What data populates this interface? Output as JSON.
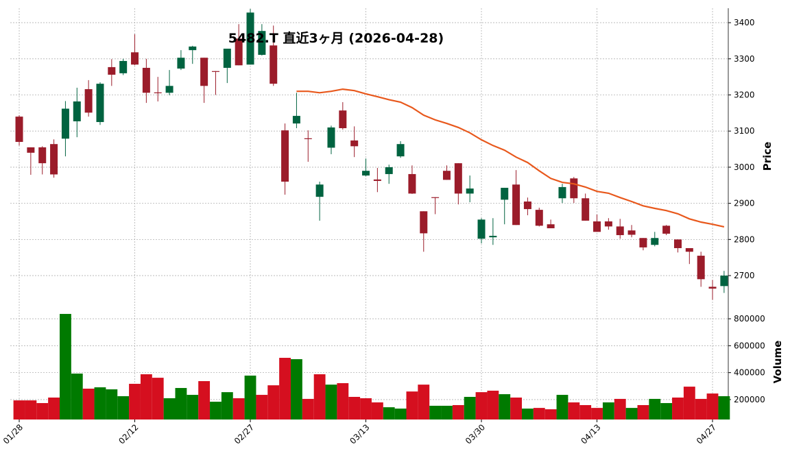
{
  "chart_data": {
    "type": "candlestick",
    "title": "5482.T 直近3ヶ月 (2026-04-28)",
    "ylabel": "Price",
    "categories": [
      "01/28",
      null,
      null,
      null,
      null,
      null,
      null,
      null,
      null,
      null,
      "02/12",
      null,
      null,
      null,
      null,
      null,
      null,
      null,
      null,
      null,
      "02/27",
      null,
      null,
      null,
      null,
      null,
      null,
      null,
      null,
      null,
      "03/13",
      null,
      null,
      null,
      null,
      null,
      null,
      null,
      null,
      null,
      "03/30",
      null,
      null,
      null,
      null,
      null,
      null,
      null,
      null,
      null,
      "04/13",
      null,
      null,
      null,
      null,
      null,
      null,
      null,
      null,
      null,
      "04/27",
      null
    ],
    "open": [
      3140,
      3055,
      3055,
      3064,
      3079,
      3127,
      3216,
      3125,
      3277,
      3260,
      3318,
      3275,
      3207,
      3206,
      3273,
      3324,
      3303,
      3266,
      3275,
      3356,
      3284,
      3311,
      3337,
      3102,
      3121,
      3080,
      2918,
      3054,
      3157,
      3074,
      2977,
      2966,
      2981,
      3030,
      2981,
      2878,
      2917,
      2990,
      3011,
      2927,
      2802,
      2806,
      2910,
      2952,
      2905,
      2882,
      2842,
      2914,
      2969,
      2914,
      2850,
      2850,
      2836,
      2825,
      2804,
      2785,
      2838,
      2800,
      2776,
      2755,
      2669,
      2671
    ],
    "high": [
      3144,
      3055,
      3058,
      3077,
      3183,
      3220,
      3241,
      3235,
      3299,
      3300,
      3368,
      3300,
      3250,
      3269,
      3324,
      3336,
      3303,
      3266,
      3328,
      3396,
      3438,
      3396,
      3392,
      3121,
      3206,
      3102,
      2960,
      3115,
      3180,
      3113,
      3024,
      2998,
      3007,
      3072,
      3005,
      2878,
      2917,
      3005,
      3011,
      2977,
      2859,
      2859,
      2943,
      2992,
      2916,
      2888,
      2855,
      2954,
      2973,
      2927,
      2869,
      2859,
      2857,
      2840,
      2804,
      2821,
      2840,
      2800,
      2776,
      2766,
      2688,
      2713
    ],
    "low": [
      3060,
      2979,
      2980,
      2971,
      3030,
      3083,
      3140,
      3117,
      3225,
      3255,
      3282,
      3178,
      3182,
      3199,
      3269,
      3286,
      3178,
      3200,
      3233,
      3282,
      3284,
      3309,
      3225,
      2924,
      3108,
      3015,
      2852,
      3036,
      3104,
      3028,
      2975,
      2931,
      2954,
      3026,
      2926,
      2766,
      2870,
      2965,
      2897,
      2903,
      2789,
      2785,
      2842,
      2840,
      2867,
      2836,
      2831,
      2901,
      2901,
      2852,
      2821,
      2827,
      2802,
      2806,
      2770,
      2781,
      2812,
      2764,
      2732,
      2669,
      2633,
      2652
    ],
    "close": [
      3070,
      3040,
      3011,
      2980,
      3162,
      3182,
      3151,
      3231,
      3256,
      3294,
      3284,
      3206,
      3205,
      3225,
      3303,
      3334,
      3225,
      3265,
      3328,
      3282,
      3428,
      3377,
      3231,
      2960,
      3142,
      3078,
      2952,
      3110,
      3108,
      3058,
      2990,
      2962,
      3000,
      3064,
      2927,
      2817,
      2915,
      2965,
      2927,
      2941,
      2855,
      2810,
      2943,
      2840,
      2884,
      2838,
      2831,
      2945,
      2914,
      2852,
      2821,
      2836,
      2812,
      2813,
      2778,
      2804,
      2816,
      2776,
      2766,
      2690,
      2664,
      2700
    ],
    "up_color": "#006340",
    "down_color": "#9b1c2a",
    "ma": {
      "color": "#e8581c",
      "values": [
        null,
        null,
        null,
        null,
        null,
        null,
        null,
        null,
        null,
        null,
        null,
        null,
        null,
        null,
        null,
        null,
        null,
        null,
        null,
        null,
        null,
        null,
        null,
        null,
        3210,
        3210,
        3206,
        3210,
        3216,
        3212,
        3203,
        3195,
        3187,
        3180,
        3165,
        3144,
        3131,
        3121,
        3110,
        3095,
        3076,
        3060,
        3047,
        3028,
        3013,
        2990,
        2969,
        2958,
        2954,
        2945,
        2933,
        2928,
        2916,
        2905,
        2893,
        2886,
        2880,
        2871,
        2857,
        2848,
        2842,
        2835
      ]
    },
    "ylim": [
      2628,
      3440
    ],
    "yticks": [
      2700,
      2800,
      2900,
      3000,
      3100,
      3200,
      3300,
      3400
    ],
    "grid": true,
    "volume": {
      "label": "Volume",
      "up_color": "#007a00",
      "down_color": "#d50f1f",
      "values": [
        194000,
        194000,
        174000,
        215000,
        836000,
        393000,
        281000,
        291000,
        276000,
        225000,
        317000,
        388000,
        362000,
        210000,
        286000,
        235000,
        337000,
        184000,
        255000,
        210000,
        378000,
        235000,
        306000,
        510000,
        500000,
        205000,
        388000,
        311000,
        322000,
        220000,
        210000,
        179000,
        143000,
        133000,
        260000,
        311000,
        154000,
        154000,
        159000,
        220000,
        255000,
        266000,
        240000,
        215000,
        133000,
        138000,
        128000,
        235000,
        179000,
        159000,
        138000,
        179000,
        205000,
        138000,
        159000,
        205000,
        174000,
        215000,
        296000,
        205000,
        245000,
        225000
      ],
      "ylim": [
        52000,
        902000
      ],
      "yticks": [
        200000,
        400000,
        600000,
        800000
      ]
    }
  }
}
